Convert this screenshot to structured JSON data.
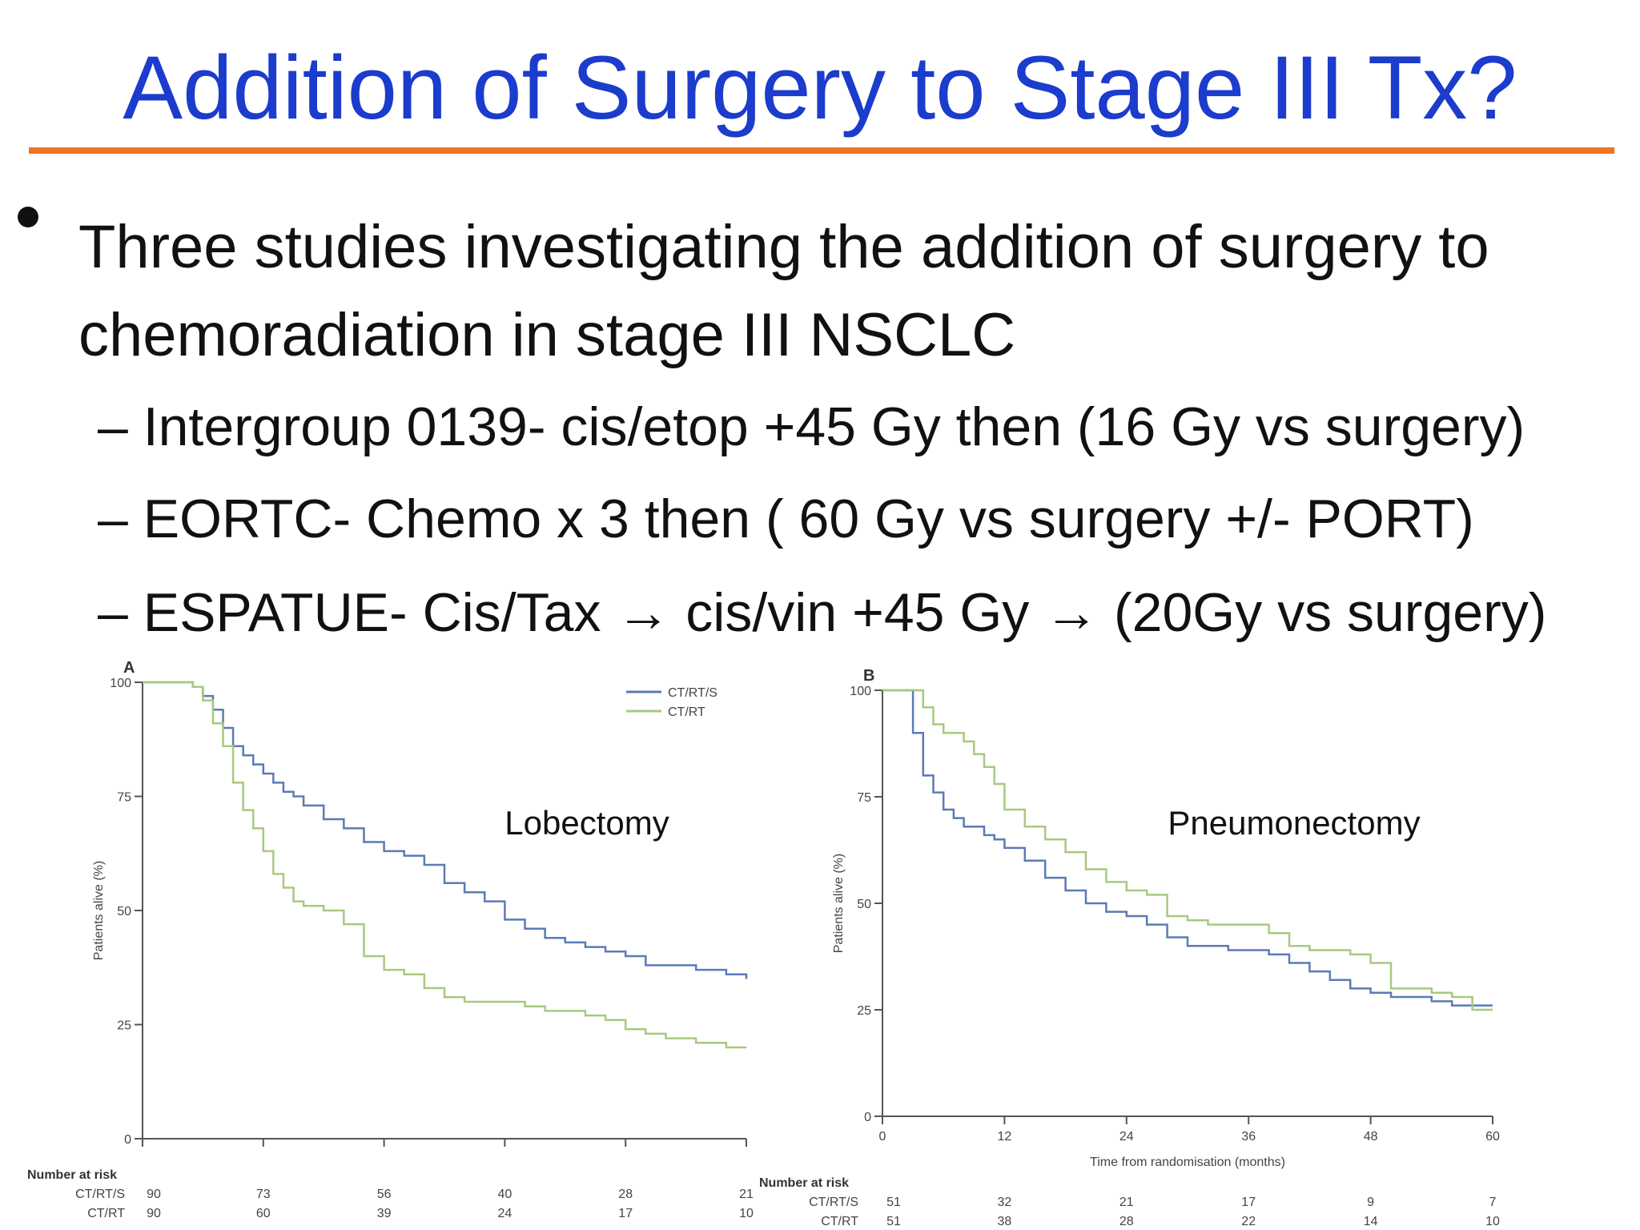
{
  "slide": {
    "title": "Addition of Surgery to Stage III Tx?",
    "accent_color": "#1b3ccc",
    "rule_color": "#f07422",
    "bullet": "Three studies investigating the addition of surgery to chemoradiation in stage III NSCLC",
    "subbullets": [
      "– Intergroup 0139- cis/etop +45 Gy then (16 Gy vs surgery)",
      "– EORTC- Chemo x 3 then ( 60 Gy vs surgery +/- PORT)",
      "– ESPATUE- Cis/Tax → cis/vin +45 Gy → (20Gy vs surgery)"
    ]
  },
  "chart_data": [
    {
      "type": "line",
      "panel_label": "A",
      "annotation": "Lobectomy",
      "ylabel": "Patients alive (%)",
      "yticks": [
        "0",
        "25",
        "50",
        "75",
        "100"
      ],
      "ylim": [
        0,
        100
      ],
      "xlim": [
        0,
        60
      ],
      "legend": [
        "CT/RT/S",
        "CT/RT"
      ],
      "legend_position": "top-right",
      "series": [
        {
          "name": "CT/RT/S",
          "color": "#5b7bb5",
          "x": [
            0,
            3,
            5,
            6,
            7,
            8,
            9,
            10,
            11,
            12,
            13,
            14,
            15,
            16,
            18,
            20,
            22,
            24,
            26,
            28,
            30,
            32,
            34,
            36,
            38,
            40,
            42,
            44,
            46,
            48,
            50,
            52,
            55,
            58,
            60
          ],
          "y": [
            100,
            100,
            99,
            97,
            94,
            90,
            86,
            84,
            82,
            80,
            78,
            76,
            75,
            73,
            70,
            68,
            65,
            63,
            62,
            60,
            56,
            54,
            52,
            48,
            46,
            44,
            43,
            42,
            41,
            40,
            38,
            38,
            37,
            36,
            35
          ]
        },
        {
          "name": "CT/RT",
          "color": "#a8c97e",
          "x": [
            0,
            3,
            5,
            6,
            7,
            8,
            9,
            10,
            11,
            12,
            13,
            14,
            15,
            16,
            18,
            20,
            22,
            24,
            26,
            28,
            30,
            32,
            34,
            36,
            38,
            40,
            42,
            44,
            46,
            48,
            50,
            52,
            55,
            58,
            60
          ],
          "y": [
            100,
            100,
            99,
            96,
            91,
            86,
            78,
            72,
            68,
            63,
            58,
            55,
            52,
            51,
            50,
            47,
            40,
            37,
            36,
            33,
            31,
            30,
            30,
            30,
            29,
            28,
            28,
            27,
            26,
            24,
            23,
            22,
            21,
            20,
            20
          ]
        }
      ],
      "risk_table": {
        "heading": "Number at risk",
        "rows": [
          {
            "label": "CT/RT/S",
            "values": [
              "90",
              "73",
              "56",
              "40",
              "28",
              "21"
            ]
          },
          {
            "label": "CT/RT",
            "values": [
              "90",
              "60",
              "39",
              "24",
              "17",
              "10"
            ]
          }
        ]
      }
    },
    {
      "type": "line",
      "panel_label": "B",
      "annotation": "Pneumonectomy",
      "ylabel": "Patients alive (%)",
      "xlabel": "Time from randomisation (months)",
      "yticks": [
        "0",
        "25",
        "50",
        "75",
        "100"
      ],
      "xticks": [
        "0",
        "12",
        "24",
        "36",
        "48",
        "60"
      ],
      "ylim": [
        0,
        100
      ],
      "xlim": [
        0,
        60
      ],
      "series": [
        {
          "name": "CT/RT/S",
          "color": "#5b7bb5",
          "x": [
            0,
            2,
            3,
            4,
            5,
            6,
            7,
            8,
            9,
            10,
            11,
            12,
            14,
            16,
            18,
            20,
            22,
            24,
            26,
            28,
            30,
            32,
            34,
            36,
            38,
            40,
            42,
            44,
            46,
            48,
            50,
            52,
            54,
            56,
            58,
            60
          ],
          "y": [
            100,
            100,
            90,
            80,
            76,
            72,
            70,
            68,
            68,
            66,
            65,
            63,
            60,
            56,
            53,
            50,
            48,
            47,
            45,
            42,
            40,
            40,
            39,
            39,
            38,
            36,
            34,
            32,
            30,
            29,
            28,
            28,
            27,
            26,
            26,
            26
          ]
        },
        {
          "name": "CT/RT",
          "color": "#a8c97e",
          "x": [
            0,
            2,
            3,
            4,
            5,
            6,
            7,
            8,
            9,
            10,
            11,
            12,
            14,
            16,
            18,
            20,
            22,
            24,
            26,
            28,
            30,
            32,
            34,
            36,
            38,
            40,
            42,
            44,
            46,
            48,
            50,
            52,
            54,
            56,
            58,
            60
          ],
          "y": [
            100,
            100,
            100,
            96,
            92,
            90,
            90,
            88,
            85,
            82,
            78,
            72,
            68,
            65,
            62,
            58,
            55,
            53,
            52,
            47,
            46,
            45,
            45,
            45,
            43,
            40,
            39,
            39,
            38,
            36,
            30,
            30,
            29,
            28,
            25,
            25
          ]
        }
      ],
      "risk_table": {
        "heading": "Number at risk",
        "rows": [
          {
            "label": "CT/RT/S",
            "values": [
              "51",
              "32",
              "21",
              "17",
              "9",
              "7"
            ]
          },
          {
            "label": "CT/RT",
            "values": [
              "51",
              "38",
              "28",
              "22",
              "14",
              "10"
            ]
          }
        ]
      }
    }
  ]
}
